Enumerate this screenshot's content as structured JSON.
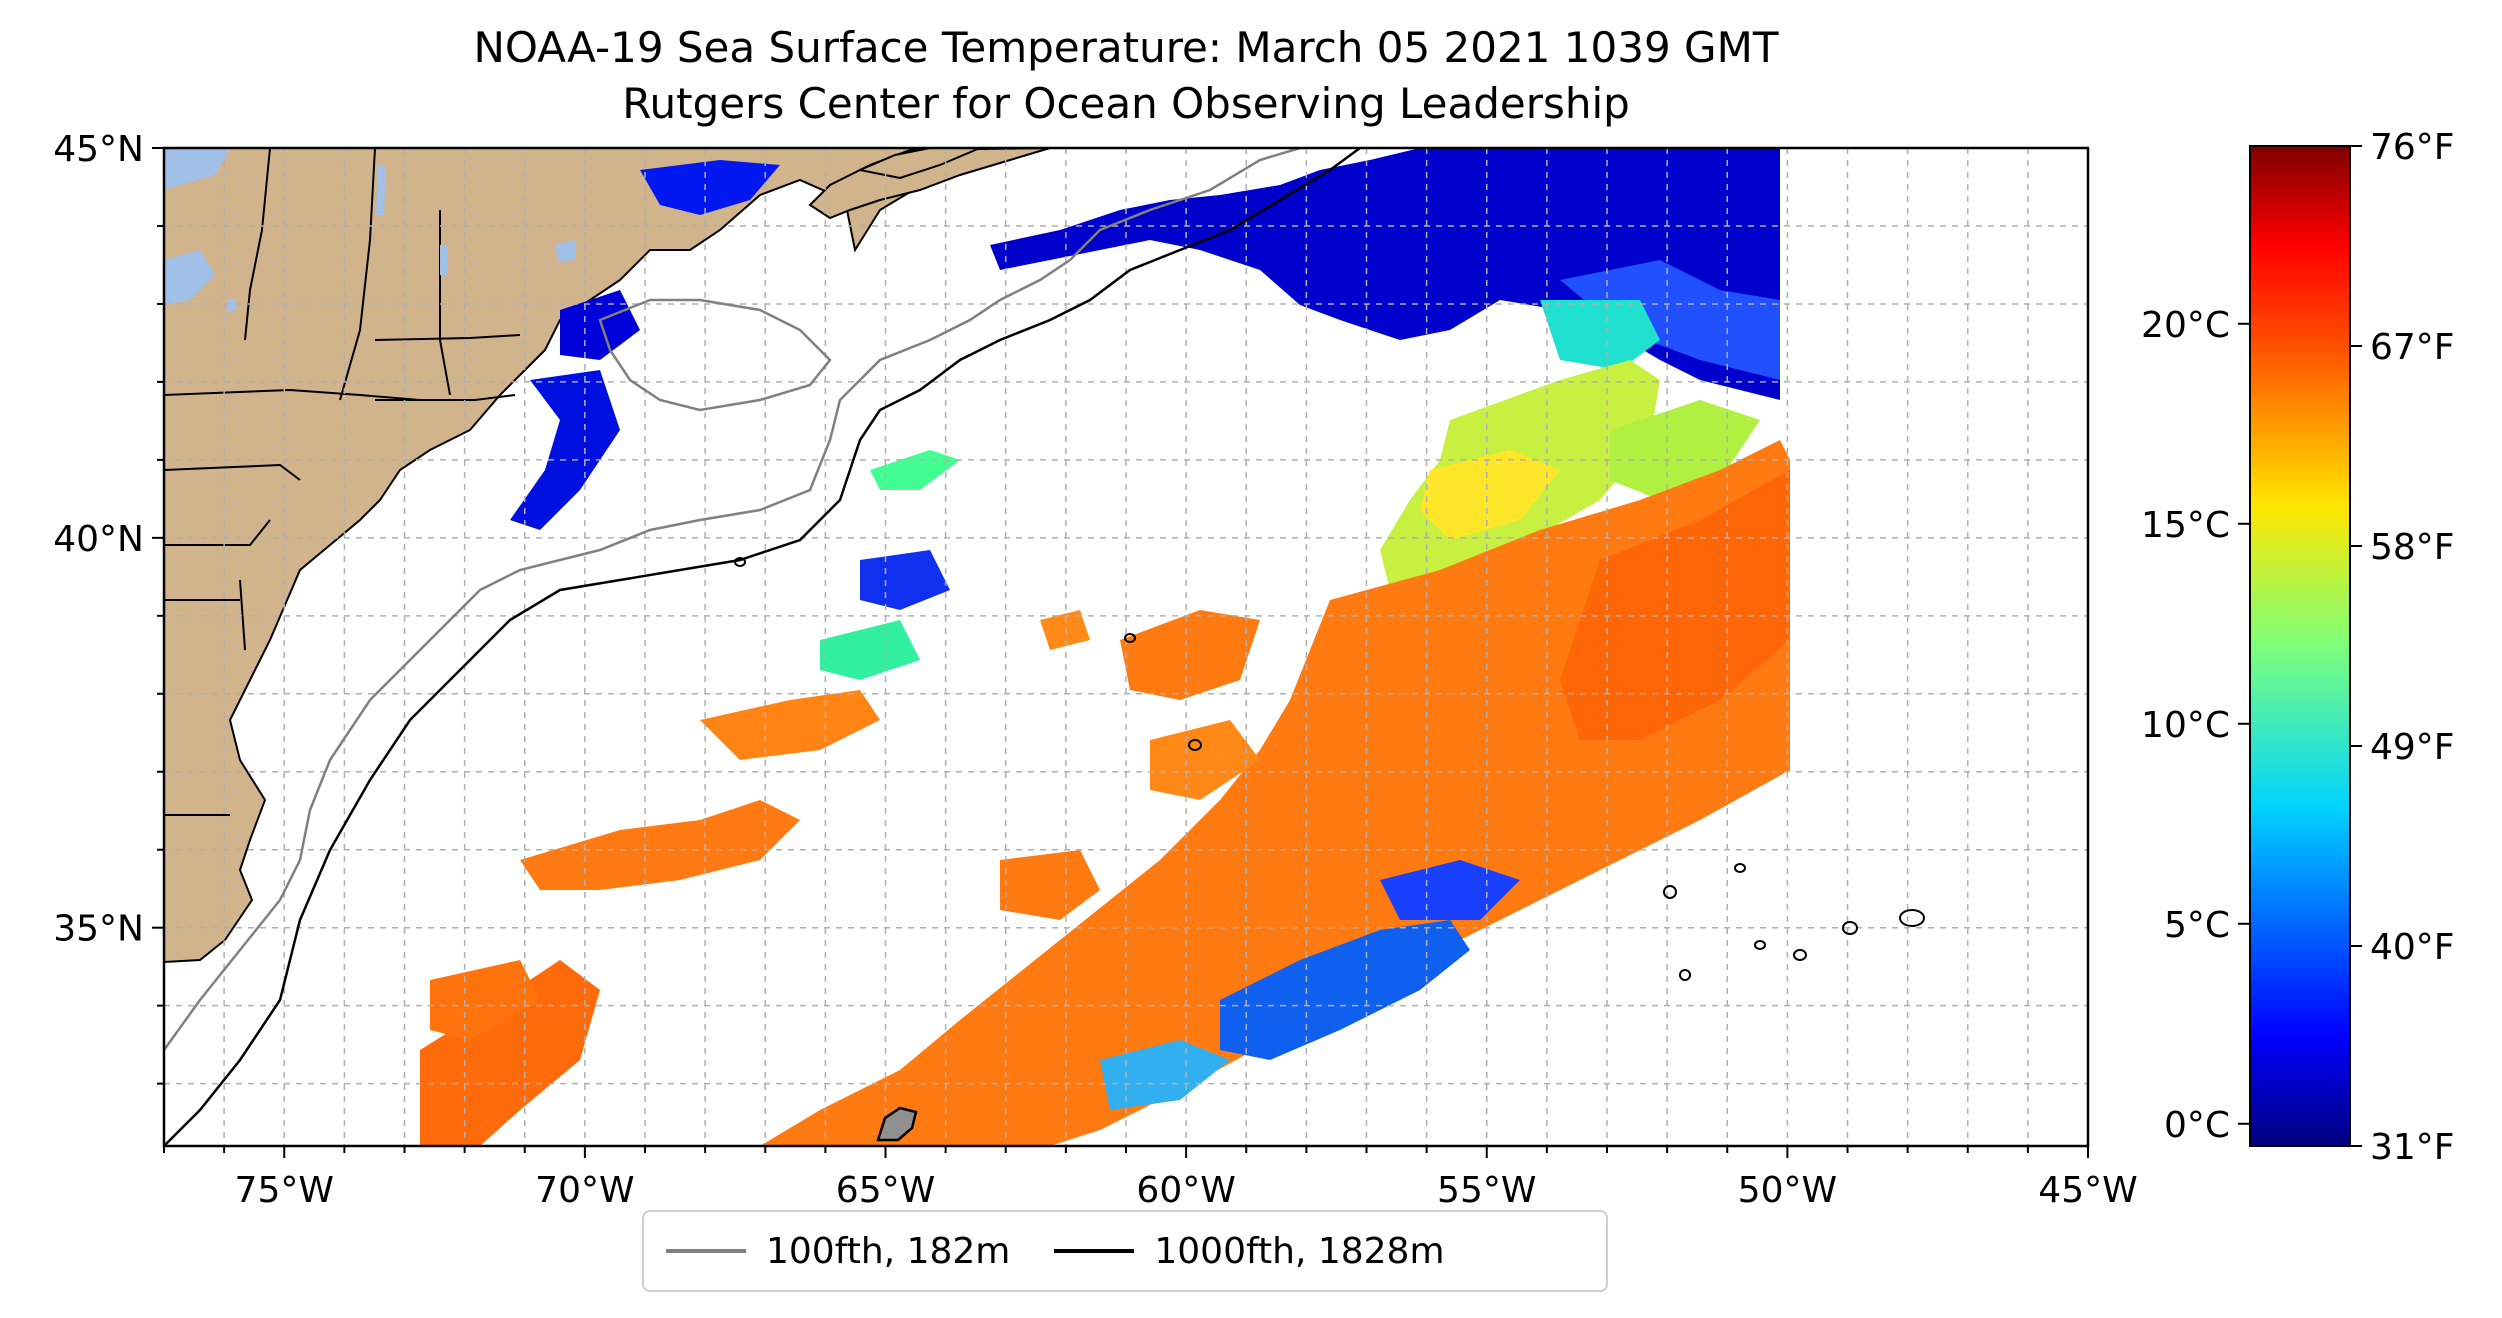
{
  "title": {
    "line1": "NOAA-19 Sea Surface Temperature: March 05 2021 1039 GMT",
    "line2": "Rutgers Center for Ocean Observing Leadership"
  },
  "map": {
    "lon_range": [
      -77,
      -45
    ],
    "lat_range": [
      32.2,
      45
    ],
    "lon_ticks": [
      {
        "value": -75,
        "label": "75°W"
      },
      {
        "value": -70,
        "label": "70°W"
      },
      {
        "value": -65,
        "label": "65°W"
      },
      {
        "value": -60,
        "label": "60°W"
      },
      {
        "value": -55,
        "label": "55°W"
      },
      {
        "value": -50,
        "label": "50°W"
      },
      {
        "value": -45,
        "label": "45°W"
      }
    ],
    "lat_ticks": [
      {
        "value": 45,
        "label": "45°N"
      },
      {
        "value": 40,
        "label": "40°N"
      },
      {
        "value": 35,
        "label": "35°N"
      }
    ],
    "gridlines": "dashed",
    "colors": {
      "land": "#d2b48c",
      "lakes": "#a0c0e8",
      "isobath_100": "#808080",
      "isobath_1000": "#000000",
      "grid": "#b0b0b0"
    }
  },
  "colorbar": {
    "colormap": "jet",
    "celsius_ticks": [
      {
        "value": 0,
        "label": "0°C"
      },
      {
        "value": 5,
        "label": "5°C"
      },
      {
        "value": 10,
        "label": "10°C"
      },
      {
        "value": 15,
        "label": "15°C"
      },
      {
        "value": 20,
        "label": "20°C"
      }
    ],
    "fahrenheit_ticks": [
      {
        "value": 31,
        "label": "31°F"
      },
      {
        "value": 40,
        "label": "40°F"
      },
      {
        "value": 49,
        "label": "49°F"
      },
      {
        "value": 58,
        "label": "58°F"
      },
      {
        "value": 67,
        "label": "67°F"
      },
      {
        "value": 76,
        "label": "76°F"
      }
    ],
    "range_f": [
      31,
      76
    ]
  },
  "legend": {
    "items": [
      {
        "label": "100fth, 182m",
        "color": "#808080"
      },
      {
        "label": "1000fth, 1828m",
        "color": "#000000"
      }
    ]
  }
}
